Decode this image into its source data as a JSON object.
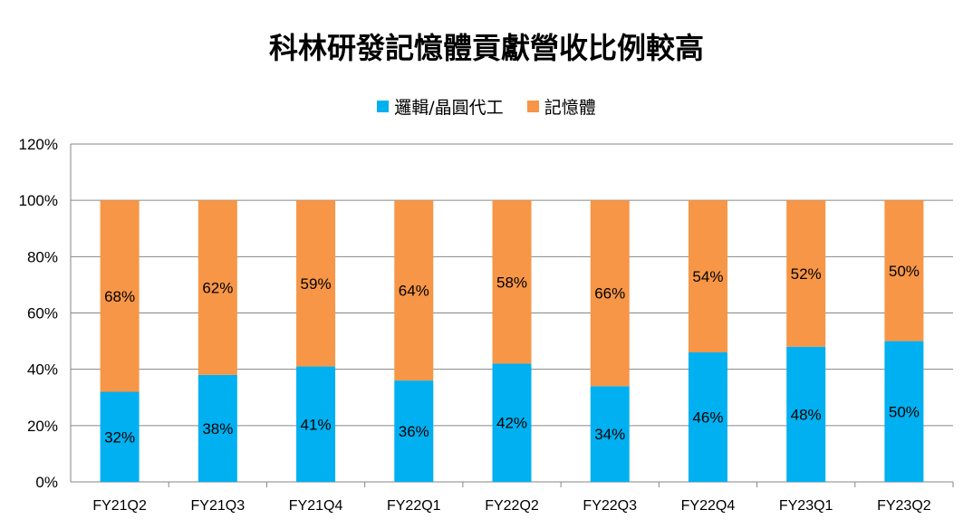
{
  "chart_data": {
    "type": "bar",
    "stacked": true,
    "title": "科林研發記憶體貢獻營收比例較高",
    "xlabel": "",
    "ylabel": "",
    "ylim": [
      0,
      120
    ],
    "yticks": [
      "0%",
      "20%",
      "40%",
      "60%",
      "80%",
      "100%",
      "120%"
    ],
    "grid": true,
    "legend_position": "top-center",
    "categories": [
      "FY21Q2",
      "FY21Q3",
      "FY21Q4",
      "FY22Q1",
      "FY22Q2",
      "FY22Q3",
      "FY22Q4",
      "FY23Q1",
      "FY23Q2"
    ],
    "series": [
      {
        "name": "邏輯/晶圓代工",
        "color": "#00B0F0",
        "values": [
          32,
          38,
          41,
          36,
          42,
          34,
          46,
          48,
          50
        ]
      },
      {
        "name": "記憶體",
        "color": "#F79646",
        "values": [
          68,
          62,
          59,
          64,
          58,
          66,
          54,
          52,
          50
        ]
      }
    ]
  }
}
